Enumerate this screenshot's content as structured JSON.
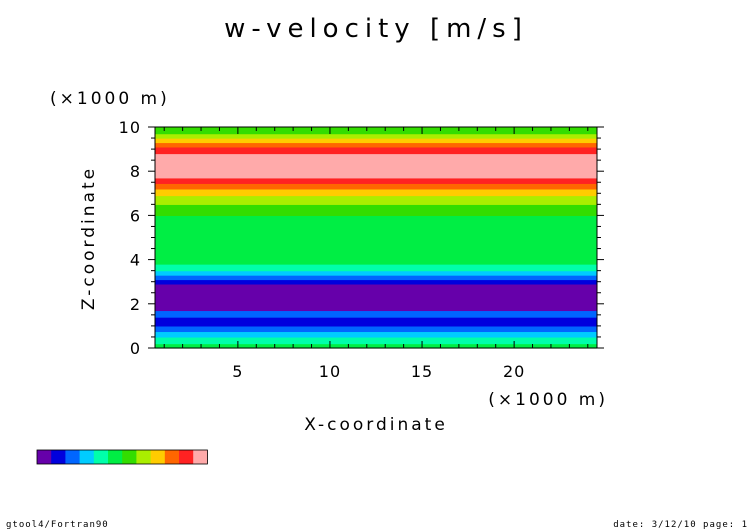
{
  "chart_data": {
    "type": "heatmap",
    "title": "w-velocity [m/s]",
    "xlabel": "X-coordinate",
    "ylabel": "Z-coordinate",
    "x_unit": "(×1000 m)",
    "y_unit": "(×1000 m)",
    "xlim": [
      0.5,
      24.5
    ],
    "ylim": [
      0,
      10
    ],
    "x_ticks": [
      "5",
      "10",
      "15",
      "20"
    ],
    "y_ticks": [
      "0",
      "2",
      "4",
      "6",
      "8",
      "10"
    ],
    "x_tick_values": [
      5,
      10,
      15,
      20
    ],
    "y_tick_values": [
      0,
      2,
      4,
      6,
      8,
      10
    ],
    "grid": false,
    "palette": [
      "#6600aa",
      "#0000dd",
      "#0066ff",
      "#00ccff",
      "#00ffaa",
      "#00ee44",
      "#33dd00",
      "#aaee00",
      "#ffcc00",
      "#ff6600",
      "#ff2222",
      "#ffaaaa"
    ],
    "bands": [
      {
        "z0": 0.0,
        "z1": 0.2,
        "color": "#00ee44"
      },
      {
        "z0": 0.2,
        "z1": 0.5,
        "color": "#00ffaa"
      },
      {
        "z0": 0.5,
        "z1": 0.75,
        "color": "#00ccff"
      },
      {
        "z0": 0.75,
        "z1": 1.0,
        "color": "#0066ff"
      },
      {
        "z0": 1.0,
        "z1": 1.4,
        "color": "#0000dd"
      },
      {
        "z0": 1.4,
        "z1": 1.7,
        "color": "#0066ff"
      },
      {
        "z0": 1.7,
        "z1": 2.9,
        "color": "#6600aa"
      },
      {
        "z0": 2.9,
        "z1": 3.1,
        "color": "#0000dd"
      },
      {
        "z0": 3.1,
        "z1": 3.3,
        "color": "#0066ff"
      },
      {
        "z0": 3.3,
        "z1": 3.5,
        "color": "#00ccff"
      },
      {
        "z0": 3.5,
        "z1": 3.8,
        "color": "#00ffaa"
      },
      {
        "z0": 3.8,
        "z1": 6.0,
        "color": "#00ee44"
      },
      {
        "z0": 6.0,
        "z1": 6.5,
        "color": "#33dd00"
      },
      {
        "z0": 6.5,
        "z1": 6.9,
        "color": "#aaee00"
      },
      {
        "z0": 6.9,
        "z1": 7.2,
        "color": "#ffcc00"
      },
      {
        "z0": 7.2,
        "z1": 7.45,
        "color": "#ff6600"
      },
      {
        "z0": 7.45,
        "z1": 7.7,
        "color": "#ff2222"
      },
      {
        "z0": 7.7,
        "z1": 8.8,
        "color": "#ffaaaa"
      },
      {
        "z0": 8.8,
        "z1": 9.1,
        "color": "#ff2222"
      },
      {
        "z0": 9.1,
        "z1": 9.3,
        "color": "#ff6600"
      },
      {
        "z0": 9.3,
        "z1": 9.5,
        "color": "#ffcc00"
      },
      {
        "z0": 9.5,
        "z1": 9.7,
        "color": "#aaee00"
      },
      {
        "z0": 9.7,
        "z1": 10.0,
        "color": "#33dd00"
      }
    ]
  },
  "footer": {
    "left": "gtool4/Fortran90",
    "right": "date: 3/12/10 page: 1"
  }
}
